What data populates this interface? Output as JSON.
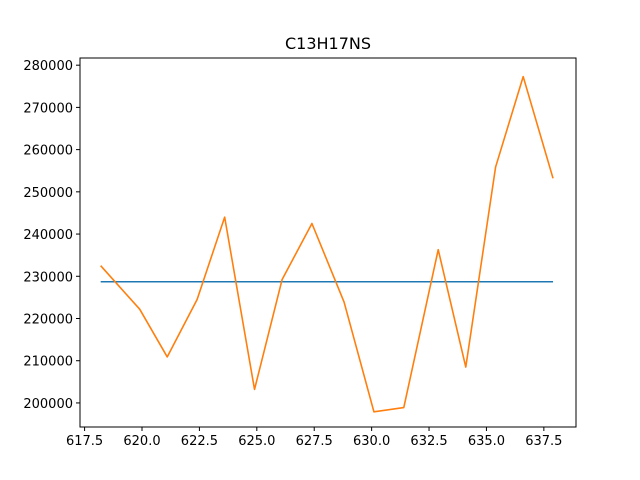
{
  "chart_data": {
    "type": "line",
    "title": "C13H17NS",
    "xlabel": "",
    "ylabel": "",
    "xlim": [
      617.3,
      638.9
    ],
    "ylim": [
      194300,
      281700
    ],
    "xticks": [
      617.5,
      620.0,
      622.5,
      625.0,
      627.5,
      630.0,
      632.5,
      635.0,
      637.5
    ],
    "xtick_labels": [
      "617.5",
      "620.0",
      "622.5",
      "625.0",
      "627.5",
      "630.0",
      "632.5",
      "635.0",
      "637.5"
    ],
    "yticks": [
      200000,
      210000,
      220000,
      230000,
      240000,
      250000,
      260000,
      270000,
      280000
    ],
    "ytick_labels": [
      "200000",
      "210000",
      "220000",
      "230000",
      "240000",
      "250000",
      "260000",
      "270000",
      "280000"
    ],
    "grid": false,
    "series": [
      {
        "color": "#1f77b4",
        "x": [
          618.2,
          637.9
        ],
        "y": [
          228700,
          228700
        ]
      },
      {
        "color": "#ff7f0e",
        "x": [
          618.2,
          619.9,
          621.1,
          622.4,
          623.6,
          624.9,
          626.1,
          627.4,
          628.8,
          630.1,
          631.4,
          632.9,
          634.1,
          635.4,
          636.6,
          637.9
        ],
        "y": [
          232500,
          222200,
          210900,
          224500,
          244000,
          203200,
          229200,
          242500,
          223900,
          197900,
          198900,
          236300,
          208500,
          255900,
          277300,
          253200
        ]
      }
    ]
  }
}
